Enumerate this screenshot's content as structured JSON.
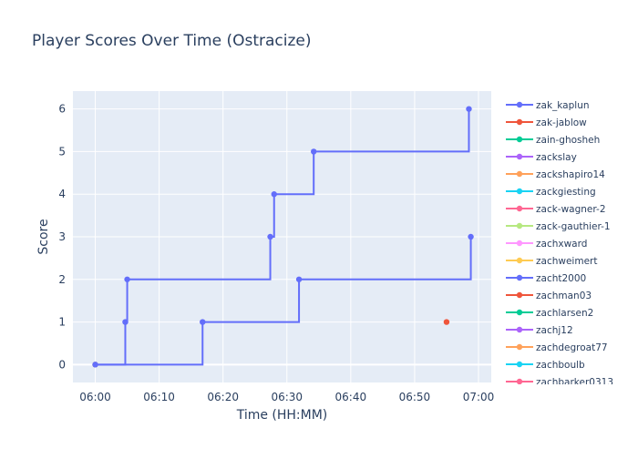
{
  "chart_data": {
    "type": "line",
    "title": "Player Scores Over Time (Ostracize)",
    "xlabel": "Time (HH:MM)",
    "ylabel": "Score",
    "line_shape": "step",
    "x_unit": "minutes since 06:00",
    "xlim": [
      -3.5,
      62
    ],
    "ylim": [
      -0.42,
      6.42
    ],
    "x_ticks": [
      {
        "value": 0,
        "label": "06:00"
      },
      {
        "value": 10,
        "label": "06:10"
      },
      {
        "value": 20,
        "label": "06:20"
      },
      {
        "value": 30,
        "label": "06:30"
      },
      {
        "value": 40,
        "label": "06:40"
      },
      {
        "value": 50,
        "label": "06:50"
      },
      {
        "value": 60,
        "label": "07:00"
      }
    ],
    "y_ticks": [
      0,
      1,
      2,
      3,
      4,
      5,
      6
    ],
    "grid": true,
    "legend_placement": "right",
    "series": [
      {
        "name": "zak_kaplun",
        "color": "#636efa",
        "x": [
          0,
          4.7,
          5.0,
          27.4,
          28.0,
          34.2,
          58.5
        ],
        "y": [
          0,
          1,
          2,
          3,
          4,
          5,
          6
        ]
      },
      {
        "name": "zak-jablow",
        "color": "#EF553B",
        "x": [],
        "y": []
      },
      {
        "name": "zain-ghosheh",
        "color": "#00cc96",
        "x": [],
        "y": []
      },
      {
        "name": "zackslay",
        "color": "#ab63fa",
        "x": [],
        "y": []
      },
      {
        "name": "zackshapiro14",
        "color": "#FFA15A",
        "x": [],
        "y": []
      },
      {
        "name": "zackgiesting",
        "color": "#19d3f3",
        "x": [],
        "y": []
      },
      {
        "name": "zack-wagner-2",
        "color": "#FF6692",
        "x": [],
        "y": []
      },
      {
        "name": "zack-gauthier-1",
        "color": "#B6E880",
        "x": [],
        "y": []
      },
      {
        "name": "zachxward",
        "color": "#FF97FF",
        "x": [],
        "y": []
      },
      {
        "name": "zachweimert",
        "color": "#FECB52",
        "x": [
          0
        ],
        "y": [
          0
        ]
      },
      {
        "name": "zacht2000",
        "color": "#636efa",
        "x": [
          0,
          16.8,
          31.9,
          58.8
        ],
        "y": [
          0,
          1,
          2,
          3
        ]
      },
      {
        "name": "zachman03",
        "color": "#EF553B",
        "x": [
          55.0
        ],
        "y": [
          1
        ]
      },
      {
        "name": "zachlarsen2",
        "color": "#00cc96",
        "x": [],
        "y": []
      },
      {
        "name": "zachj12",
        "color": "#ab63fa",
        "x": [],
        "y": []
      },
      {
        "name": "zachdegroat77",
        "color": "#FFA15A",
        "x": [],
        "y": []
      },
      {
        "name": "zachboulb",
        "color": "#19d3f3",
        "x": [],
        "y": []
      },
      {
        "name": "zachbarker0313",
        "color": "#FF6692",
        "x": [],
        "y": []
      }
    ]
  },
  "colors": {
    "plot_background": "#e5ecf6",
    "grid": "#ffffff",
    "text": "#2a3f5f"
  }
}
